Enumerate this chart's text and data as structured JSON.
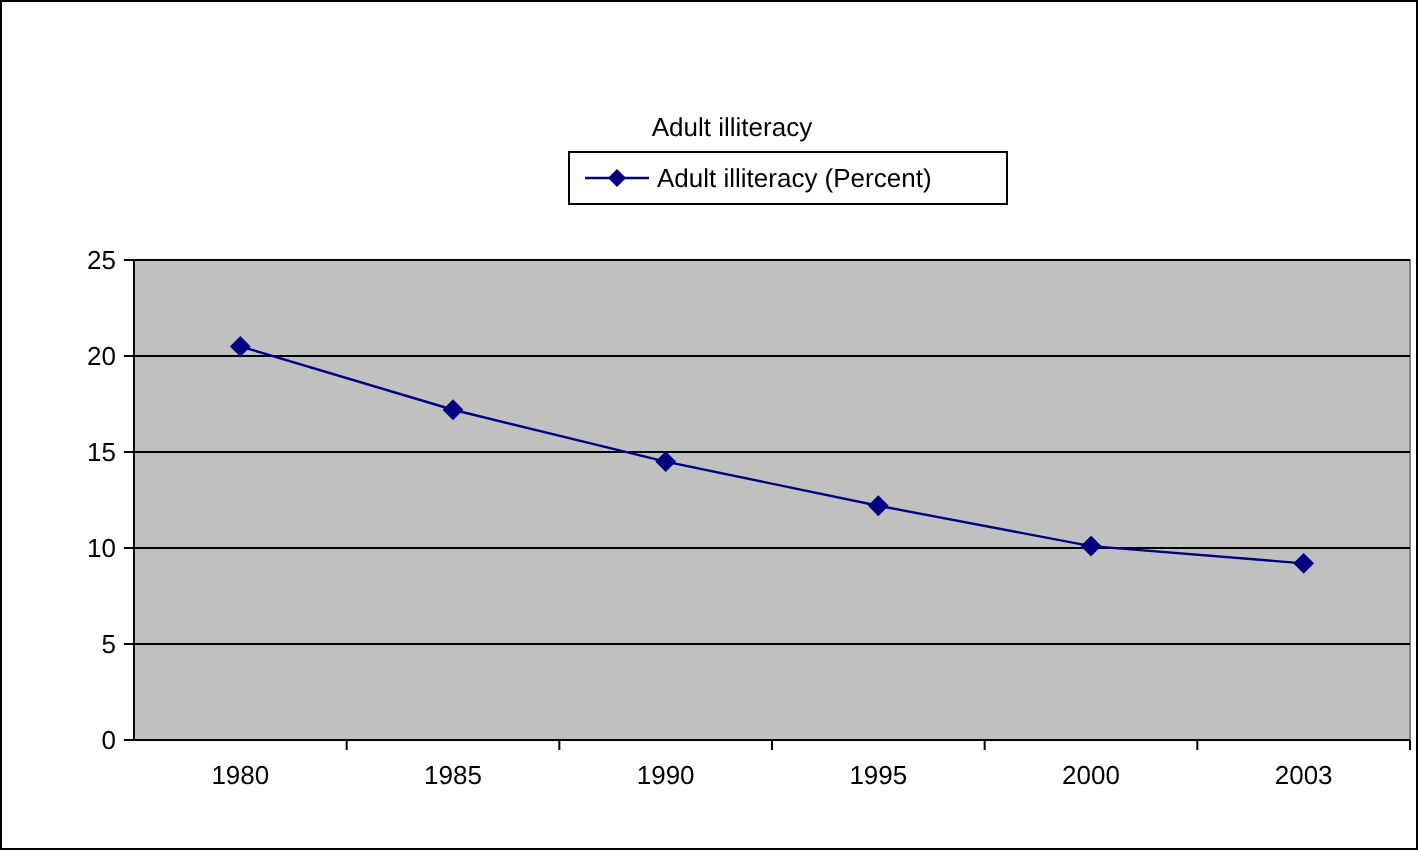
{
  "chart_data": {
    "type": "line",
    "title": "Adult illiteracy",
    "categories": [
      "1980",
      "1985",
      "1990",
      "1995",
      "2000",
      "2003"
    ],
    "series": [
      {
        "name": "Adult illiteracy (Percent)",
        "color": "#000080",
        "values": [
          20.5,
          17.2,
          14.5,
          12.2,
          10.1,
          9.2
        ]
      }
    ],
    "ylim": [
      0,
      25
    ],
    "yticks": [
      0,
      5,
      10,
      15,
      20,
      25
    ],
    "grid": "y",
    "legend": "top",
    "marker": "diamond",
    "line_style": "solid"
  }
}
